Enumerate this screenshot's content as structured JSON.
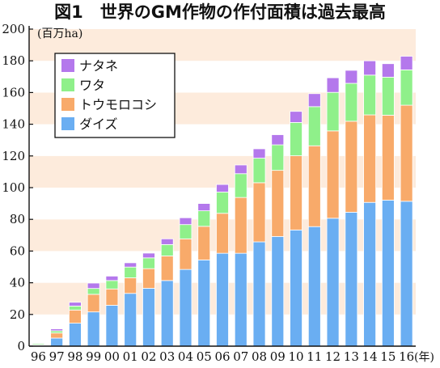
{
  "chart_data": {
    "type": "bar",
    "stacked": true,
    "title": "図1　世界のGM作物の作付面積は過去最高",
    "ylabel": "(百万ha)",
    "xlabel": "(年)",
    "ylim": [
      0,
      200
    ],
    "yticks": [
      0,
      20,
      40,
      60,
      80,
      100,
      120,
      140,
      160,
      180,
      200
    ],
    "categories": [
      "96",
      "97",
      "98",
      "99",
      "00",
      "01",
      "02",
      "03",
      "04",
      "05",
      "06",
      "07",
      "08",
      "09",
      "10",
      "11",
      "12",
      "13",
      "14",
      "15",
      "16"
    ],
    "series": [
      {
        "name": "ダイズ",
        "color": "#6aaef2",
        "values": [
          0.5,
          5.1,
          14.5,
          21.6,
          25.8,
          33.3,
          36.5,
          41.4,
          48.4,
          54.4,
          58.6,
          58.6,
          65.8,
          69.2,
          73.3,
          75.4,
          80.7,
          84.5,
          90.7,
          92.1,
          91.4
        ]
      },
      {
        "name": "トウモロコシ",
        "color": "#f8aa6a",
        "values": [
          0.3,
          3.2,
          8.3,
          11.1,
          10.3,
          9.8,
          12.4,
          15.5,
          19.3,
          21.2,
          25.2,
          35.2,
          37.3,
          41.7,
          46.8,
          51.0,
          55.1,
          57.4,
          55.2,
          53.6,
          60.6
        ]
      },
      {
        "name": "ワタ",
        "color": "#8ff08a",
        "values": [
          0.8,
          1.4,
          2.5,
          3.7,
          5.3,
          6.8,
          6.8,
          7.2,
          9.0,
          9.8,
          13.4,
          15.0,
          15.5,
          16.1,
          21.0,
          24.7,
          24.3,
          23.9,
          25.1,
          24.0,
          22.3
        ]
      },
      {
        "name": "ナタネ",
        "color": "#b478ec",
        "values": [
          0.1,
          1.2,
          2.4,
          3.4,
          2.8,
          2.7,
          3.0,
          3.6,
          4.3,
          4.6,
          4.8,
          5.5,
          5.9,
          6.4,
          7.0,
          8.2,
          9.2,
          8.2,
          9.0,
          8.5,
          8.6
        ]
      }
    ],
    "legend": {
      "position": "top-left",
      "order": [
        "ナタネ",
        "ワタ",
        "トウモロコシ",
        "ダイズ"
      ]
    },
    "background_bands": {
      "colors": [
        "#fdebdc",
        "#ffffff"
      ],
      "every": 20
    },
    "colors": {
      "axis": "#111111",
      "segment_gap": "#ffffff"
    }
  }
}
